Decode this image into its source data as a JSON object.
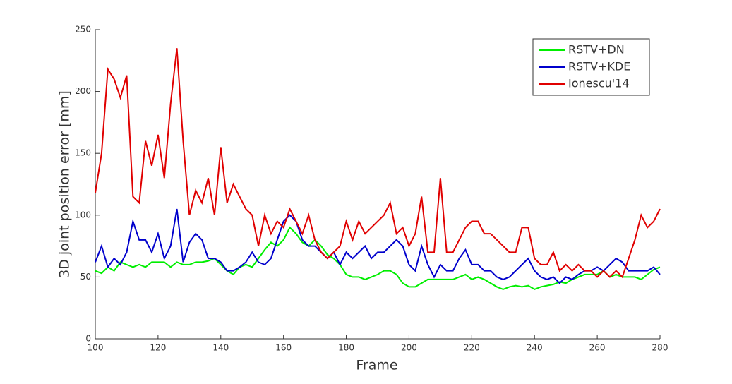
{
  "chart_data": {
    "type": "line",
    "xlabel": "Frame",
    "ylabel": "3D joint position error [mm]",
    "x": [
      100,
      102,
      104,
      106,
      108,
      110,
      112,
      114,
      116,
      118,
      120,
      122,
      124,
      126,
      128,
      130,
      132,
      134,
      136,
      138,
      140,
      142,
      144,
      146,
      148,
      150,
      152,
      154,
      156,
      158,
      160,
      162,
      164,
      166,
      168,
      170,
      172,
      174,
      176,
      178,
      180,
      182,
      184,
      186,
      188,
      190,
      192,
      194,
      196,
      198,
      200,
      202,
      204,
      206,
      208,
      210,
      212,
      214,
      216,
      218,
      220,
      222,
      224,
      226,
      228,
      230,
      232,
      234,
      236,
      238,
      240,
      242,
      244,
      246,
      248,
      250,
      252,
      254,
      256,
      258,
      260,
      262,
      264,
      266,
      268,
      270,
      272,
      274,
      276,
      278,
      280
    ],
    "series": [
      {
        "name": "RSTV+DN",
        "color": "#00ee00",
        "values": [
          55,
          53,
          58,
          55,
          62,
          60,
          58,
          60,
          58,
          62,
          62,
          62,
          58,
          62,
          60,
          60,
          62,
          62,
          63,
          65,
          60,
          55,
          52,
          58,
          60,
          58,
          65,
          72,
          78,
          75,
          80,
          90,
          85,
          78,
          75,
          80,
          75,
          68,
          65,
          60,
          52,
          50,
          50,
          48,
          50,
          52,
          55,
          55,
          52,
          45,
          42,
          42,
          45,
          48,
          48,
          48,
          48,
          48,
          50,
          52,
          48,
          50,
          48,
          45,
          42,
          40,
          42,
          43,
          42,
          43,
          40,
          42,
          43,
          44,
          46,
          45,
          48,
          50,
          52,
          52,
          52,
          55,
          50,
          52,
          50,
          50,
          50,
          48,
          52,
          56,
          58
        ]
      },
      {
        "name": "RSTV+KDE",
        "color": "#0000cc",
        "values": [
          62,
          75,
          58,
          65,
          60,
          70,
          95,
          80,
          80,
          70,
          85,
          65,
          75,
          105,
          62,
          78,
          85,
          80,
          65,
          65,
          62,
          55,
          55,
          58,
          62,
          70,
          62,
          60,
          65,
          80,
          95,
          100,
          95,
          80,
          75,
          75,
          70,
          65,
          70,
          60,
          70,
          65,
          70,
          75,
          65,
          70,
          70,
          75,
          80,
          75,
          60,
          55,
          75,
          60,
          50,
          60,
          55,
          55,
          65,
          72,
          60,
          60,
          55,
          55,
          50,
          48,
          50,
          55,
          60,
          65,
          55,
          50,
          48,
          50,
          45,
          50,
          48,
          52,
          55,
          55,
          58,
          55,
          60,
          65,
          62,
          55,
          55,
          55,
          55,
          58,
          52
        ]
      },
      {
        "name": "Ionescu'14",
        "color": "#e00000",
        "values": [
          118,
          150,
          218,
          210,
          195,
          213,
          115,
          110,
          160,
          140,
          165,
          130,
          190,
          235,
          160,
          100,
          120,
          110,
          130,
          100,
          155,
          110,
          125,
          115,
          105,
          100,
          75,
          100,
          85,
          95,
          90,
          105,
          95,
          85,
          100,
          80,
          70,
          65,
          70,
          75,
          95,
          80,
          95,
          85,
          90,
          95,
          100,
          110,
          85,
          90,
          75,
          85,
          115,
          70,
          70,
          130,
          70,
          70,
          80,
          90,
          95,
          95,
          85,
          85,
          80,
          75,
          70,
          70,
          90,
          90,
          65,
          60,
          60,
          70,
          55,
          60,
          55,
          60,
          55,
          55,
          50,
          55,
          50,
          55,
          50,
          65,
          80,
          100,
          90,
          95,
          105
        ]
      }
    ],
    "xlim": [
      100,
      280
    ],
    "xticks": [
      100,
      120,
      140,
      160,
      180,
      200,
      220,
      240,
      260,
      280
    ],
    "ylim": [
      0,
      250
    ],
    "yticks": [
      0,
      50,
      100,
      150,
      200,
      250
    ],
    "legend": "top-right"
  }
}
